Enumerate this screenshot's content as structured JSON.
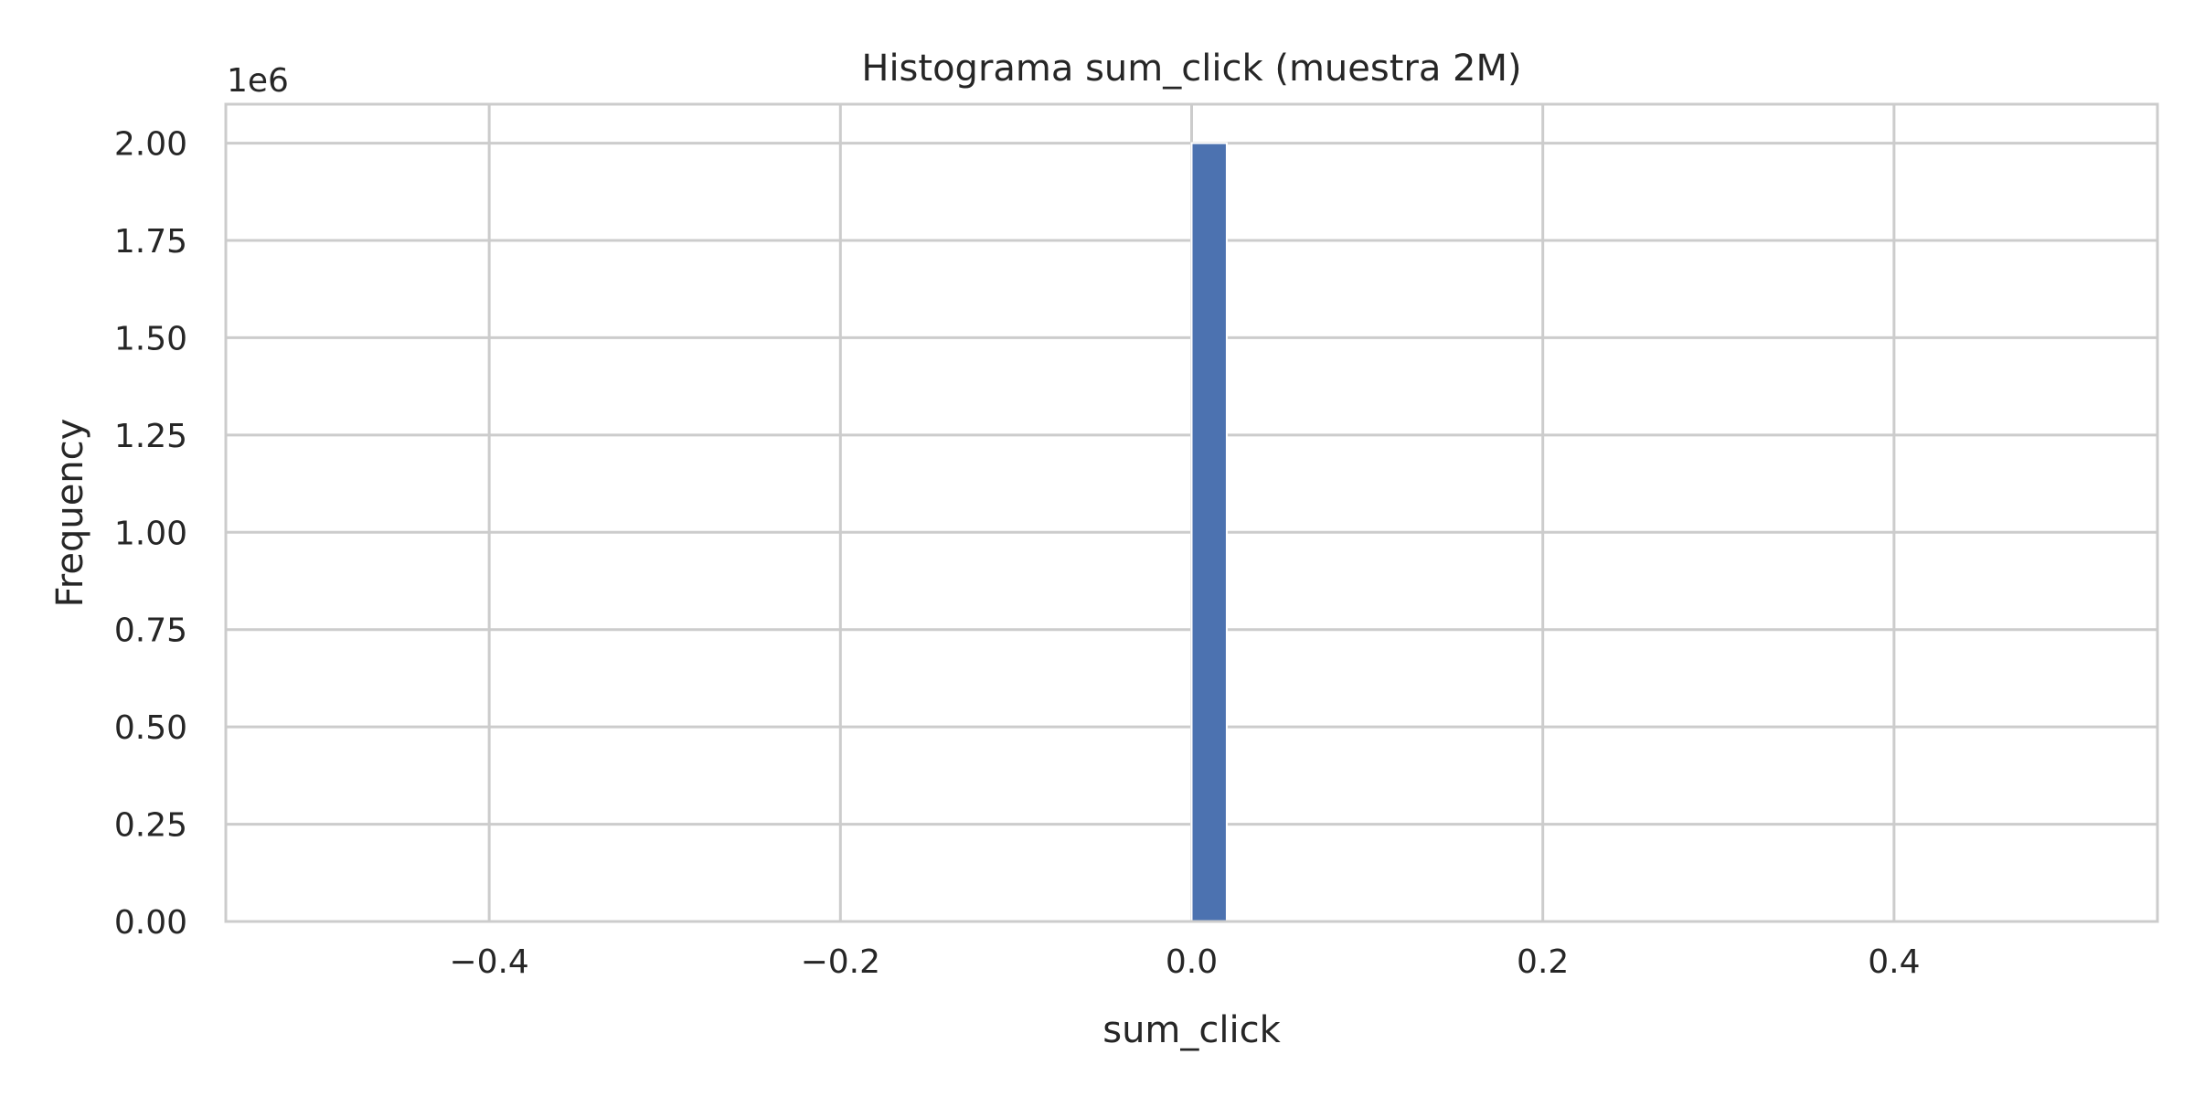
{
  "chart_data": {
    "type": "bar",
    "title": "Histograma sum_click (muestra 2M)",
    "xlabel": "sum_click",
    "ylabel": "Frequency",
    "y_offset_label": "1e6",
    "xlim": [
      -0.55,
      0.55
    ],
    "ylim": [
      0,
      2.1
    ],
    "x_ticks": [
      -0.4,
      -0.2,
      0.0,
      0.2,
      0.4
    ],
    "x_tick_labels": [
      "−0.4",
      "−0.2",
      "0.0",
      "0.2",
      "0.4"
    ],
    "y_ticks": [
      0,
      0.25,
      0.5,
      0.75,
      1.0,
      1.25,
      1.5,
      1.75,
      2.0
    ],
    "y_tick_labels": [
      "0.00",
      "0.25",
      "0.50",
      "0.75",
      "1.00",
      "1.25",
      "1.50",
      "1.75",
      "2.00"
    ],
    "bins": [
      {
        "x_start": 0.0,
        "x_end": 0.02,
        "value": 2.0
      }
    ],
    "grid": true,
    "colors": {
      "bar": "#4c72b0",
      "grid": "#cccccc",
      "spine": "#cccccc",
      "text": "#262626"
    }
  }
}
